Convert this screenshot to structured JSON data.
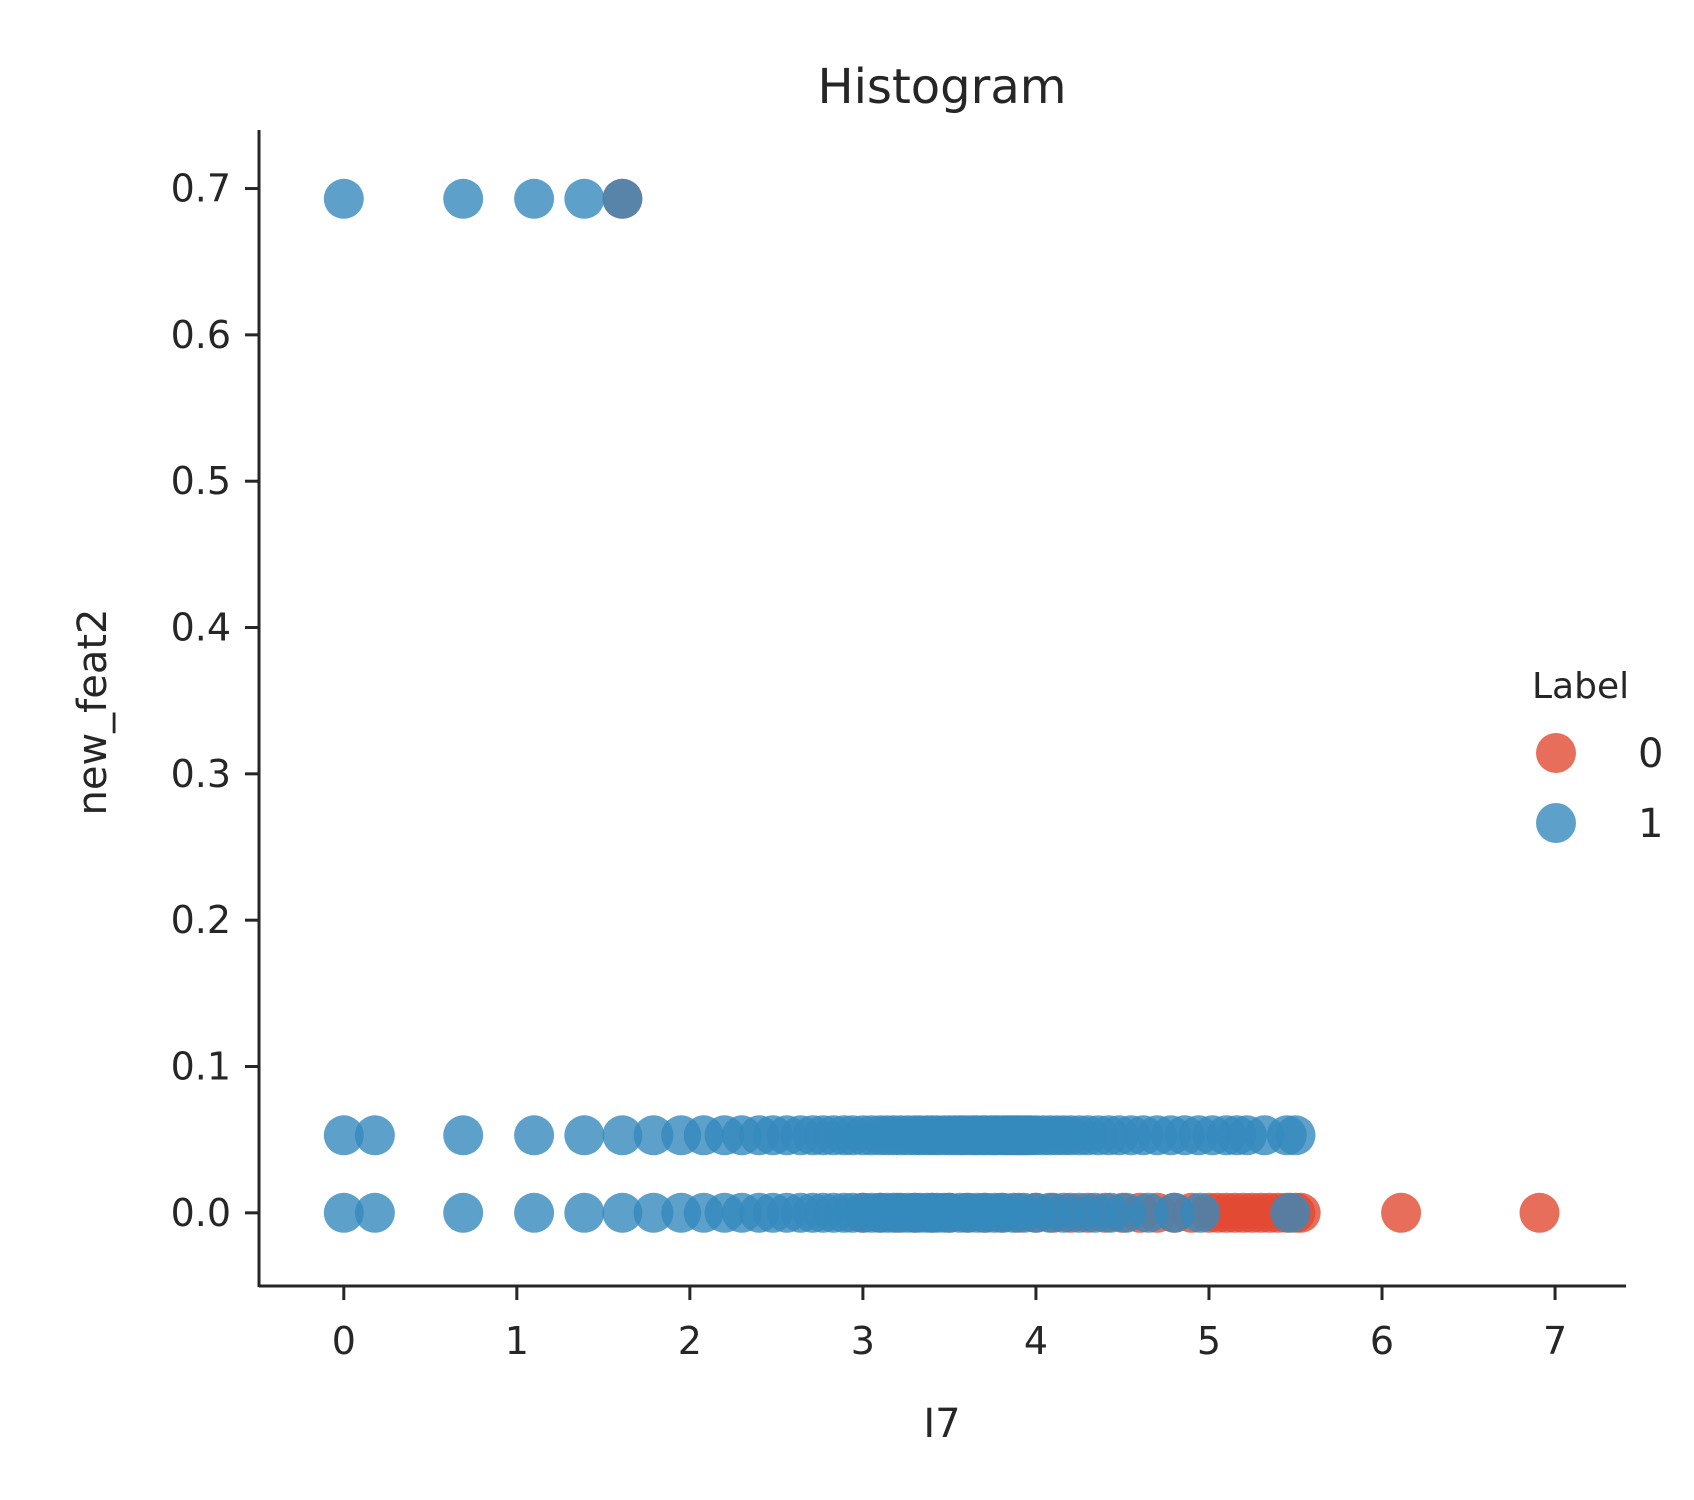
{
  "chart_data": {
    "type": "scatter",
    "title": "Histogram",
    "xlabel": "I7",
    "ylabel": "new_feat2",
    "xlim": [
      -0.49,
      7.41
    ],
    "ylim": [
      -0.05,
      0.74
    ],
    "xticks": [
      0,
      1,
      2,
      3,
      4,
      5,
      6,
      7
    ],
    "yticks": [
      0.0,
      0.1,
      0.2,
      0.3,
      0.4,
      0.5,
      0.6,
      0.7
    ],
    "xtick_labels": [
      "0",
      "1",
      "2",
      "3",
      "4",
      "5",
      "6",
      "7"
    ],
    "ytick_labels": [
      "0.0",
      "0.1",
      "0.2",
      "0.3",
      "0.4",
      "0.5",
      "0.6",
      "0.7"
    ],
    "grid": false,
    "legend": {
      "title": "Label",
      "placement": "right-center",
      "entries": [
        {
          "label": "0",
          "color": "#e24a33"
        },
        {
          "label": "1",
          "color": "#348abd"
        }
      ]
    },
    "series": [
      {
        "name": "0",
        "color": "#e24a33",
        "points": [
          [
            3.0,
            0.0
          ],
          [
            3.1,
            0.0
          ],
          [
            3.2,
            0.0
          ],
          [
            3.3,
            0.0
          ],
          [
            3.4,
            0.0
          ],
          [
            3.5,
            0.0
          ],
          [
            3.6,
            0.0
          ],
          [
            3.7,
            0.0
          ],
          [
            3.8,
            0.0
          ],
          [
            3.9,
            0.0
          ],
          [
            4.0,
            0.0
          ],
          [
            4.1,
            0.0
          ],
          [
            4.2,
            0.0
          ],
          [
            4.3,
            0.0
          ],
          [
            4.4,
            0.0
          ],
          [
            4.5,
            0.0
          ],
          [
            4.6,
            0.0
          ],
          [
            4.7,
            0.0
          ],
          [
            4.8,
            0.0
          ],
          [
            4.9,
            0.0
          ],
          [
            5.0,
            0.0
          ],
          [
            5.05,
            0.0
          ],
          [
            5.1,
            0.0
          ],
          [
            5.15,
            0.0
          ],
          [
            5.2,
            0.0
          ],
          [
            5.25,
            0.0
          ],
          [
            5.3,
            0.0
          ],
          [
            5.35,
            0.0
          ],
          [
            5.4,
            0.0
          ],
          [
            5.45,
            0.0
          ],
          [
            5.5,
            0.0
          ],
          [
            5.53,
            0.0
          ],
          [
            6.11,
            0.0
          ],
          [
            6.91,
            0.0
          ],
          [
            1.61,
            0.693
          ]
        ]
      },
      {
        "name": "1",
        "color": "#348abd",
        "points": [
          [
            0.0,
            0.693
          ],
          [
            0.69,
            0.693
          ],
          [
            1.1,
            0.693
          ],
          [
            1.39,
            0.693
          ],
          [
            1.61,
            0.693
          ],
          [
            0.0,
            0.053
          ],
          [
            0.18,
            0.053
          ],
          [
            0.69,
            0.053
          ],
          [
            1.1,
            0.053
          ],
          [
            1.39,
            0.053
          ],
          [
            1.61,
            0.053
          ],
          [
            1.79,
            0.053
          ],
          [
            1.95,
            0.053
          ],
          [
            2.08,
            0.053
          ],
          [
            2.2,
            0.053
          ],
          [
            2.3,
            0.053
          ],
          [
            2.4,
            0.053
          ],
          [
            2.48,
            0.053
          ],
          [
            2.56,
            0.053
          ],
          [
            2.64,
            0.053
          ],
          [
            2.71,
            0.053
          ],
          [
            2.77,
            0.053
          ],
          [
            2.83,
            0.053
          ],
          [
            2.89,
            0.053
          ],
          [
            2.94,
            0.053
          ],
          [
            3.0,
            0.053
          ],
          [
            3.05,
            0.053
          ],
          [
            3.1,
            0.053
          ],
          [
            3.14,
            0.053
          ],
          [
            3.18,
            0.053
          ],
          [
            3.22,
            0.053
          ],
          [
            3.26,
            0.053
          ],
          [
            3.3,
            0.053
          ],
          [
            3.33,
            0.053
          ],
          [
            3.37,
            0.053
          ],
          [
            3.4,
            0.053
          ],
          [
            3.43,
            0.053
          ],
          [
            3.47,
            0.053
          ],
          [
            3.5,
            0.053
          ],
          [
            3.53,
            0.053
          ],
          [
            3.56,
            0.053
          ],
          [
            3.58,
            0.053
          ],
          [
            3.61,
            0.053
          ],
          [
            3.64,
            0.053
          ],
          [
            3.66,
            0.053
          ],
          [
            3.69,
            0.053
          ],
          [
            3.71,
            0.053
          ],
          [
            3.74,
            0.053
          ],
          [
            3.76,
            0.053
          ],
          [
            3.78,
            0.053
          ],
          [
            3.81,
            0.053
          ],
          [
            3.83,
            0.053
          ],
          [
            3.85,
            0.053
          ],
          [
            3.87,
            0.053
          ],
          [
            3.89,
            0.053
          ],
          [
            3.91,
            0.053
          ],
          [
            3.93,
            0.053
          ],
          [
            3.95,
            0.053
          ],
          [
            3.97,
            0.053
          ],
          [
            4.0,
            0.053
          ],
          [
            4.04,
            0.053
          ],
          [
            4.08,
            0.053
          ],
          [
            4.12,
            0.053
          ],
          [
            4.16,
            0.053
          ],
          [
            4.2,
            0.053
          ],
          [
            4.25,
            0.053
          ],
          [
            4.3,
            0.053
          ],
          [
            4.36,
            0.053
          ],
          [
            4.42,
            0.053
          ],
          [
            4.48,
            0.053
          ],
          [
            4.55,
            0.053
          ],
          [
            4.62,
            0.053
          ],
          [
            4.7,
            0.053
          ],
          [
            4.78,
            0.053
          ],
          [
            4.86,
            0.053
          ],
          [
            4.94,
            0.053
          ],
          [
            5.02,
            0.053
          ],
          [
            5.1,
            0.053
          ],
          [
            5.16,
            0.053
          ],
          [
            5.22,
            0.053
          ],
          [
            5.32,
            0.053
          ],
          [
            5.45,
            0.053
          ],
          [
            5.5,
            0.053
          ],
          [
            0.0,
            0.0
          ],
          [
            0.18,
            0.0
          ],
          [
            0.69,
            0.0
          ],
          [
            1.1,
            0.0
          ],
          [
            1.39,
            0.0
          ],
          [
            1.61,
            0.0
          ],
          [
            1.79,
            0.0
          ],
          [
            1.95,
            0.0
          ],
          [
            2.08,
            0.0
          ],
          [
            2.2,
            0.0
          ],
          [
            2.3,
            0.0
          ],
          [
            2.4,
            0.0
          ],
          [
            2.48,
            0.0
          ],
          [
            2.56,
            0.0
          ],
          [
            2.64,
            0.0
          ],
          [
            2.71,
            0.0
          ],
          [
            2.77,
            0.0
          ],
          [
            2.83,
            0.0
          ],
          [
            2.89,
            0.0
          ],
          [
            2.94,
            0.0
          ],
          [
            3.0,
            0.0
          ],
          [
            3.05,
            0.0
          ],
          [
            3.1,
            0.0
          ],
          [
            3.14,
            0.0
          ],
          [
            3.18,
            0.0
          ],
          [
            3.22,
            0.0
          ],
          [
            3.26,
            0.0
          ],
          [
            3.3,
            0.0
          ],
          [
            3.33,
            0.0
          ],
          [
            3.37,
            0.0
          ],
          [
            3.4,
            0.0
          ],
          [
            3.43,
            0.0
          ],
          [
            3.47,
            0.0
          ],
          [
            3.5,
            0.0
          ],
          [
            3.56,
            0.0
          ],
          [
            3.61,
            0.0
          ],
          [
            3.66,
            0.0
          ],
          [
            3.71,
            0.0
          ],
          [
            3.76,
            0.0
          ],
          [
            3.81,
            0.0
          ],
          [
            3.87,
            0.0
          ],
          [
            3.93,
            0.0
          ],
          [
            4.0,
            0.0
          ],
          [
            4.08,
            0.0
          ],
          [
            4.16,
            0.0
          ],
          [
            4.25,
            0.0
          ],
          [
            4.34,
            0.0
          ],
          [
            4.43,
            0.0
          ],
          [
            4.52,
            0.0
          ],
          [
            4.65,
            0.0
          ],
          [
            4.8,
            0.0
          ],
          [
            4.95,
            0.0
          ],
          [
            5.47,
            0.0
          ]
        ]
      }
    ]
  }
}
